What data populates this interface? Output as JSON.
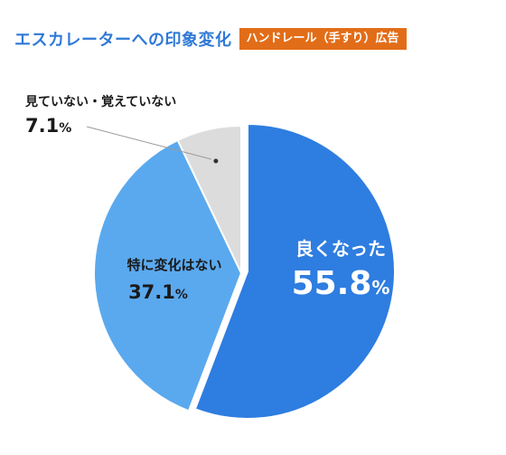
{
  "title": "エスカレーターへの印象変化",
  "tag": "ハンドレール（手すり）広告",
  "colors": {
    "good": "#2e7de0",
    "no_change": "#5aa9ee",
    "unknown": "#dcdcdc",
    "title": "#2f79d6",
    "tag_bg": "#e26d18"
  },
  "chart_data": {
    "type": "pie",
    "title": "エスカレーターへの印象変化",
    "slices": [
      {
        "label": "良くなった",
        "value": 55.8,
        "value_text": "55.8",
        "unit": "%"
      },
      {
        "label": "特に変化はない",
        "value": 37.1,
        "value_text": "37.1",
        "unit": "%"
      },
      {
        "label": "見ていない・覚えていない",
        "value": 7.1,
        "value_text": "7.1",
        "unit": "%"
      }
    ]
  }
}
